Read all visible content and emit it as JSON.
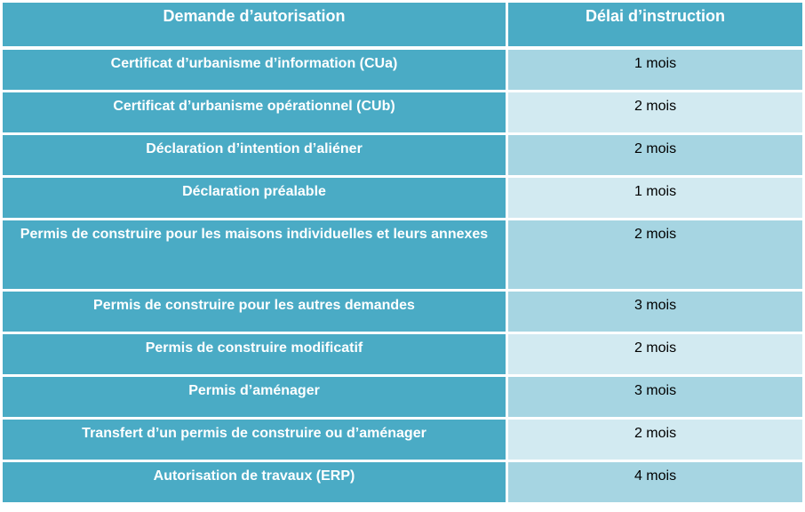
{
  "colors": {
    "header_bg": "#4aabc5",
    "row_odd_value_bg": "#a6d5e2",
    "row_even_value_bg": "#d2eaf1",
    "label_text": "#ffffff"
  },
  "table": {
    "headers": [
      "Demande d’autorisation",
      "Délai d’instruction"
    ],
    "rows": [
      {
        "demande": "Certificat d’urbanisme d’information (CUa)",
        "delai": "1 mois"
      },
      {
        "demande": "Certificat d’urbanisme opérationnel (CUb)",
        "delai": "2 mois"
      },
      {
        "demande": "Déclaration d’intention d’aliéner",
        "delai": "2 mois"
      },
      {
        "demande": "Déclaration préalable",
        "delai": "1 mois"
      },
      {
        "demande": "Permis de construire pour les maisons individuelles et leurs annexes",
        "delai": "2 mois"
      },
      {
        "demande": "Permis de construire pour les autres demandes",
        "delai": "3 mois"
      },
      {
        "demande": "Permis de construire modificatif",
        "delai": "2 mois"
      },
      {
        "demande": "Permis d’aménager",
        "delai": "3 mois"
      },
      {
        "demande": "Transfert d’un permis de construire ou d’aménager",
        "delai": "2 mois"
      },
      {
        "demande": "Autorisation de travaux (ERP)",
        "delai": "4 mois"
      }
    ]
  }
}
